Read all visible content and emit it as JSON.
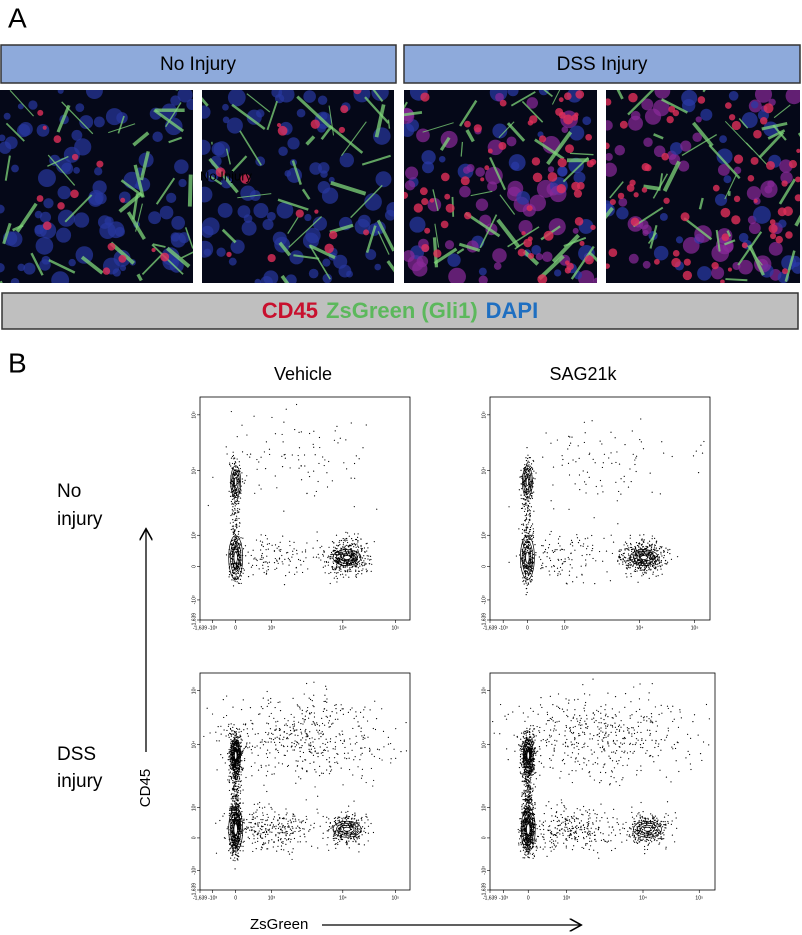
{
  "panel_a": {
    "label": "A",
    "headers": [
      "No Injury",
      "DSS Injury"
    ],
    "overlay_text": "No Injury",
    "legend": {
      "cd45": "CD45",
      "zsgreen": "ZsGreen (Gli1)",
      "dapi": "DAPI"
    }
  },
  "panel_b": {
    "label": "B",
    "columns": [
      "Vehicle",
      "SAG21k"
    ],
    "rows": [
      [
        "No",
        "injury"
      ],
      [
        "DSS",
        "injury"
      ]
    ],
    "y_axis_label": "CD45",
    "x_axis_label": "ZsGreen",
    "x_ticks": [
      "-1,639",
      "-10³",
      "0",
      "10³",
      "10⁴",
      "10⁵"
    ],
    "y_ticks": [
      "-1,639",
      "-10³",
      "0",
      "10³",
      "10⁴",
      "10⁵"
    ]
  }
}
